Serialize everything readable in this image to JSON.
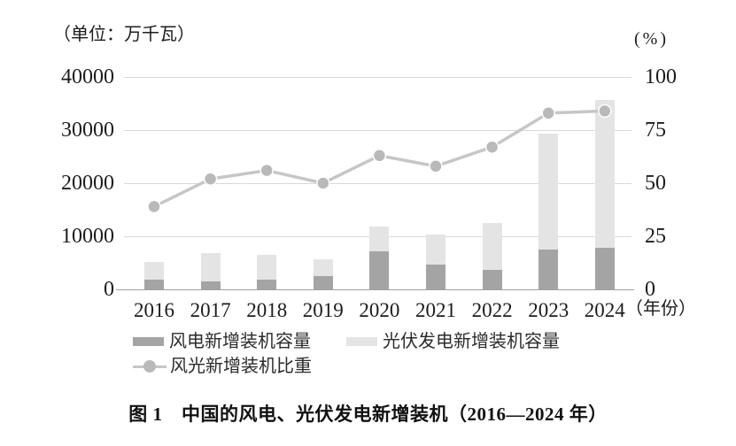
{
  "figure": {
    "left_unit": "（单位：万千瓦）",
    "right_unit": "(%)",
    "x_suffix": "（年份）",
    "caption": "图 1　中国的风电、光伏发电新增装机（2016—2024 年）"
  },
  "colors": {
    "wind_bar": "#a4a4a4",
    "solar_bar": "#e4e4e4",
    "line": "#c6c6c6",
    "marker": "#b9b9b9",
    "marker_halo": "#ffffff",
    "grid": "#d9d9d9",
    "axis": "#a0a0a0",
    "text": "#1c1c1c"
  },
  "chart_data": {
    "type": "bar",
    "subtype": "stacked-column-with-percentage-line",
    "title": "图 1　中国的风电、光伏发电新增装机（2016—2024 年）",
    "categories": [
      "2016",
      "2017",
      "2018",
      "2019",
      "2020",
      "2021",
      "2022",
      "2023",
      "2024"
    ],
    "series": [
      {
        "name": "风电新增装机容量",
        "type": "bar",
        "stack": "capacity",
        "axis": "left",
        "unit": "万千瓦",
        "color": "#a4a4a4",
        "values": [
          1800,
          1500,
          1900,
          2500,
          7100,
          4700,
          3700,
          7500,
          7900
        ]
      },
      {
        "name": "光伏发电新增装机容量",
        "type": "bar",
        "stack": "capacity",
        "axis": "left",
        "unit": "万千瓦",
        "color": "#e4e4e4",
        "values": [
          3400,
          5300,
          4600,
          3100,
          4800,
          5600,
          8800,
          21800,
          27700
        ]
      },
      {
        "name": "风光新增装机比重",
        "type": "line",
        "axis": "right",
        "unit": "%",
        "color": "#c6c6c6",
        "values": [
          39,
          52,
          56,
          50,
          63,
          58,
          67,
          83,
          84
        ]
      }
    ],
    "left_axis": {
      "label": "（单位：万千瓦）",
      "min": 0,
      "max": 40000,
      "ticks": [
        0,
        10000,
        20000,
        30000,
        40000
      ]
    },
    "right_axis": {
      "label": "(%)",
      "min": 0,
      "max": 100,
      "ticks": [
        0,
        25,
        50,
        75,
        100
      ]
    },
    "x_axis": {
      "label": "（年份）"
    },
    "grid": true,
    "legend_position": "bottom"
  },
  "legend": {
    "items": [
      {
        "label": "风电新增装机容量",
        "swatch": "bar",
        "color": "#a4a4a4"
      },
      {
        "label": "光伏发电新增装机容量",
        "swatch": "bar",
        "color": "#e4e4e4"
      },
      {
        "label": "风光新增装机比重",
        "swatch": "line-dot",
        "color": "#c6c6c6"
      }
    ]
  }
}
